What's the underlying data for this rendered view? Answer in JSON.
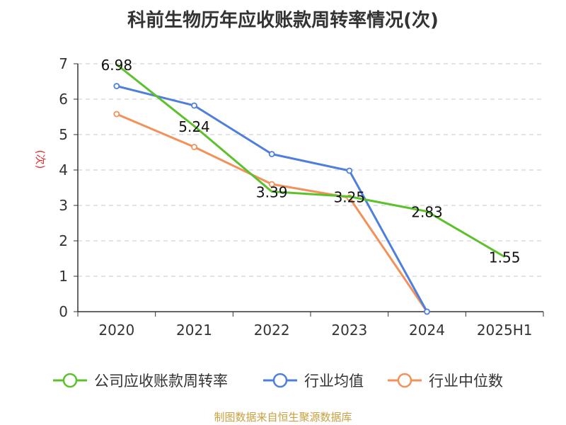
{
  "title": "科前生物历年应收账款周转率情况(次)",
  "source": "制图数据来自恒生聚源数据库",
  "colors": {
    "company": "#5cc12c",
    "industry_avg": "#4f7fdc",
    "industry_median": "#f3915a",
    "axis_label": "#e03030"
  },
  "chart_data": {
    "type": "line",
    "title": "科前生物历年应收账款周转率情况(次)",
    "ylabel": "(次)",
    "xlabel": "",
    "categories": [
      "2020",
      "2021",
      "2022",
      "2023",
      "2024",
      "2025H1"
    ],
    "ylim": [
      0,
      7
    ],
    "yticks": [
      0,
      1,
      2,
      3,
      4,
      5,
      6,
      7
    ],
    "grid": true,
    "legend_position": "bottom",
    "series": [
      {
        "name": "公司应收账款周转率",
        "color": "#5cc12c",
        "values": [
          6.98,
          5.24,
          3.39,
          3.25,
          2.83,
          1.55
        ],
        "labels": [
          "6.98",
          "5.24",
          "3.39",
          "3.25",
          "2.83",
          "1.55"
        ]
      },
      {
        "name": "行业均值",
        "color": "#4f7fdc",
        "values": [
          6.37,
          5.82,
          4.45,
          3.98,
          0.0,
          null
        ]
      },
      {
        "name": "行业中位数",
        "color": "#f3915a",
        "values": [
          5.58,
          4.65,
          3.6,
          3.22,
          0.0,
          null
        ]
      }
    ]
  }
}
